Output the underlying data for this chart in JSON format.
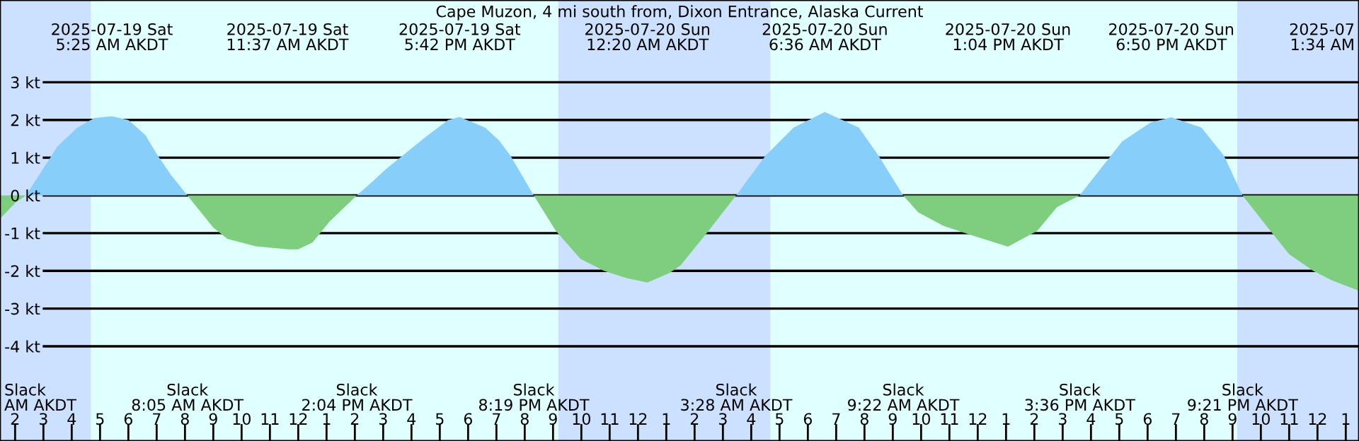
{
  "chart_data": {
    "type": "area",
    "title": "Cape Muzon, 4 mi south from, Dixon Entrance, Alaska Current",
    "x": [
      "2025-07-19T01:28",
      "2025-07-19T02:00",
      "2025-07-19T02:23",
      "2025-07-19T02:54",
      "2025-07-19T03:30",
      "2025-07-19T04:12",
      "2025-07-19T04:48",
      "2025-07-19T05:25",
      "2025-07-19T06:00",
      "2025-07-19T06:36",
      "2025-07-19T07:00",
      "2025-07-19T07:30",
      "2025-07-19T08:05",
      "2025-07-19T09:00",
      "2025-07-19T09:30",
      "2025-07-19T10:30",
      "2025-07-19T11:37",
      "2025-07-19T12:00",
      "2025-07-19T12:30",
      "2025-07-19T13:06",
      "2025-07-19T14:04",
      "2025-07-19T14:36",
      "2025-07-19T15:06",
      "2025-07-19T15:36",
      "2025-07-19T16:30",
      "2025-07-19T17:18",
      "2025-07-19T17:42",
      "2025-07-19T18:36",
      "2025-07-19T19:06",
      "2025-07-19T19:30",
      "2025-07-19T20:19",
      "2025-07-19T21:06",
      "2025-07-19T21:58",
      "2025-07-19T22:48",
      "2025-07-19T23:36",
      "2025-07-20T00:20",
      "2025-07-20T01:06",
      "2025-07-20T01:30",
      "2025-07-20T02:30",
      "2025-07-20T03:28",
      "2025-07-20T04:30",
      "2025-07-20T05:30",
      "2025-07-20T06:36",
      "2025-07-20T07:48",
      "2025-07-20T08:30",
      "2025-07-20T09:22",
      "2025-07-20T09:54",
      "2025-07-20T10:48",
      "2025-07-20T11:48",
      "2025-07-20T13:04",
      "2025-07-20T14:06",
      "2025-07-20T14:48",
      "2025-07-20T15:36",
      "2025-07-20T17:06",
      "2025-07-20T18:06",
      "2025-07-20T18:50",
      "2025-07-20T19:54",
      "2025-07-20T20:42",
      "2025-07-20T21:21",
      "2025-07-20T22:12",
      "2025-07-20T23:00",
      "2025-07-20T23:51",
      "2025-07-21T00:30",
      "2025-07-21T01:28"
    ],
    "series": [
      {
        "color": "#87cefa",
        "values": [
          null,
          null,
          0,
          0.6,
          1.3,
          1.8,
          2.05,
          2.1,
          2.0,
          1.6,
          1.1,
          0.55,
          0,
          null,
          null,
          null,
          null,
          null,
          null,
          null,
          0,
          0.35,
          0.7,
          1.0,
          1.55,
          2.0,
          2.08,
          1.8,
          1.45,
          1.05,
          0,
          null,
          null,
          null,
          null,
          null,
          null,
          null,
          null,
          0,
          1.05,
          1.8,
          2.21,
          1.8,
          1.05,
          0,
          null,
          null,
          null,
          null,
          null,
          null,
          0,
          1.43,
          1.93,
          2.07,
          1.8,
          1.05,
          0,
          null,
          null,
          null,
          null,
          null
        ]
      },
      {
        "color": "#7fce7f",
        "values": [
          -0.62,
          -0.2,
          0,
          null,
          null,
          null,
          null,
          null,
          null,
          null,
          null,
          null,
          0,
          -0.85,
          -1.15,
          -1.35,
          -1.43,
          -1.43,
          -1.25,
          -0.7,
          0,
          null,
          null,
          null,
          null,
          null,
          null,
          null,
          null,
          null,
          0,
          -0.94,
          -1.68,
          -2.0,
          -2.19,
          -2.31,
          -2.06,
          -1.86,
          -0.93,
          0,
          null,
          null,
          null,
          null,
          null,
          0,
          -0.45,
          -0.81,
          -1.06,
          -1.36,
          -0.94,
          -0.31,
          0,
          null,
          null,
          null,
          null,
          null,
          0,
          -0.81,
          -1.56,
          -2.0,
          -2.25,
          -2.53
        ]
      }
    ],
    "xlim": [
      "2025-07-19T01:28",
      "2025-07-21T01:28"
    ],
    "xticks": [
      {
        "value": "2025-07-19T02:00",
        "label": "2"
      },
      {
        "value": "2025-07-19T03:00",
        "label": "3"
      },
      {
        "value": "2025-07-19T04:00",
        "label": "4"
      },
      {
        "value": "2025-07-19T05:00",
        "label": "5"
      },
      {
        "value": "2025-07-19T06:00",
        "label": "6"
      },
      {
        "value": "2025-07-19T07:00",
        "label": "7"
      },
      {
        "value": "2025-07-19T08:00",
        "label": "8"
      },
      {
        "value": "2025-07-19T09:00",
        "label": "9"
      },
      {
        "value": "2025-07-19T10:00",
        "label": "10"
      },
      {
        "value": "2025-07-19T11:00",
        "label": "11"
      },
      {
        "value": "2025-07-19T12:00",
        "label": "12"
      },
      {
        "value": "2025-07-19T13:00",
        "label": "1"
      },
      {
        "value": "2025-07-19T14:00",
        "label": "2"
      },
      {
        "value": "2025-07-19T15:00",
        "label": "3"
      },
      {
        "value": "2025-07-19T16:00",
        "label": "4"
      },
      {
        "value": "2025-07-19T17:00",
        "label": "5"
      },
      {
        "value": "2025-07-19T18:00",
        "label": "6"
      },
      {
        "value": "2025-07-19T19:00",
        "label": "7"
      },
      {
        "value": "2025-07-19T20:00",
        "label": "8"
      },
      {
        "value": "2025-07-19T21:00",
        "label": "9"
      },
      {
        "value": "2025-07-19T22:00",
        "label": "10"
      },
      {
        "value": "2025-07-19T23:00",
        "label": "11"
      },
      {
        "value": "2025-07-20T00:00",
        "label": "12"
      },
      {
        "value": "2025-07-20T01:00",
        "label": "1"
      },
      {
        "value": "2025-07-20T02:00",
        "label": "2"
      },
      {
        "value": "2025-07-20T03:00",
        "label": "3"
      },
      {
        "value": "2025-07-20T04:00",
        "label": "4"
      },
      {
        "value": "2025-07-20T05:00",
        "label": "5"
      },
      {
        "value": "2025-07-20T06:00",
        "label": "6"
      },
      {
        "value": "2025-07-20T07:00",
        "label": "7"
      },
      {
        "value": "2025-07-20T08:00",
        "label": "8"
      },
      {
        "value": "2025-07-20T09:00",
        "label": "9"
      },
      {
        "value": "2025-07-20T10:00",
        "label": "10"
      },
      {
        "value": "2025-07-20T11:00",
        "label": "11"
      },
      {
        "value": "2025-07-20T12:00",
        "label": "12"
      },
      {
        "value": "2025-07-20T13:00",
        "label": "1"
      },
      {
        "value": "2025-07-20T14:00",
        "label": "2"
      },
      {
        "value": "2025-07-20T15:00",
        "label": "3"
      },
      {
        "value": "2025-07-20T16:00",
        "label": "4"
      },
      {
        "value": "2025-07-20T17:00",
        "label": "5"
      },
      {
        "value": "2025-07-20T18:00",
        "label": "6"
      },
      {
        "value": "2025-07-20T19:00",
        "label": "7"
      },
      {
        "value": "2025-07-20T20:00",
        "label": "8"
      },
      {
        "value": "2025-07-20T21:00",
        "label": "9"
      },
      {
        "value": "2025-07-20T22:00",
        "label": "10"
      },
      {
        "value": "2025-07-20T23:00",
        "label": "11"
      },
      {
        "value": "2025-07-21T00:00",
        "label": "12"
      },
      {
        "value": "2025-07-21T01:00",
        "label": "1"
      }
    ],
    "ylim": [
      -6.51,
      5.18
    ],
    "yticks": [
      {
        "value": 3,
        "label": "3 kt"
      },
      {
        "value": 2,
        "label": "2 kt"
      },
      {
        "value": 1,
        "label": "1 kt"
      },
      {
        "value": 0,
        "label": "0 kt"
      },
      {
        "value": -1,
        "label": "-1 kt"
      },
      {
        "value": -2,
        "label": "-2 kt"
      },
      {
        "value": -3,
        "label": "-3 kt"
      },
      {
        "value": -4,
        "label": "-4 kt"
      }
    ],
    "grid": "y",
    "bands": [
      {
        "axis": "x",
        "from": "2025-07-19T01:28",
        "to": "2025-07-19T04:41",
        "color": "#cce0ff"
      },
      {
        "axis": "x",
        "from": "2025-07-19T04:41",
        "to": "2025-07-19T21:11",
        "color": "#e0ffff"
      },
      {
        "axis": "x",
        "from": "2025-07-19T21:11",
        "to": "2025-07-20T04:41",
        "color": "#cce0ff"
      },
      {
        "axis": "x",
        "from": "2025-07-20T04:41",
        "to": "2025-07-20T21:10",
        "color": "#e0ffff"
      },
      {
        "axis": "x",
        "from": "2025-07-20T21:10",
        "to": "2025-07-21T01:28",
        "color": "#cce0ff"
      }
    ],
    "annotations": [
      "2025-07-19 Sat\n5:25 AM AKDT",
      "2025-07-19 Sat\n11:37 AM AKDT",
      "2025-07-19 Sat\n5:42 PM AKDT",
      "2025-07-20 Sun\n12:20 AM AKDT",
      "2025-07-20 Sun\n6:36 AM AKDT",
      "2025-07-20 Sun\n1:04 PM AKDT",
      "2025-07-20 Sun\n6:50 PM AKDT",
      "2025-07\n1:34 AM",
      "Slack\nAM AKDT",
      "Slack\n8:05 AM AKDT",
      "Slack\n2:04 PM AKDT",
      "Slack\n8:19 PM AKDT",
      "Slack\n3:28 AM AKDT",
      "Slack\n9:22 AM AKDT",
      "Slack\n3:36 PM AKDT",
      "Slack\n9:21 PM AKDT"
    ]
  }
}
